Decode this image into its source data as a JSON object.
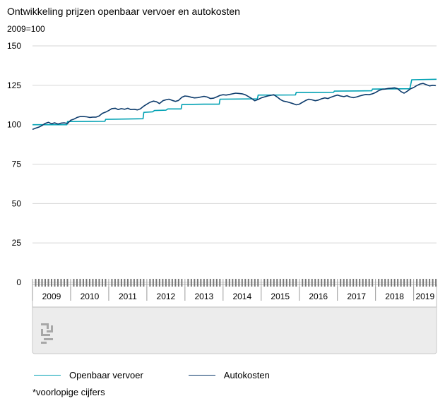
{
  "title": "Ontwikkeling prijzen openbaar vervoer en autokosten",
  "unit_label": "2009=100",
  "footnote": "*voorlopige cijfers",
  "logo": {
    "name": "cbs-logo",
    "color": "#a7a7a7"
  },
  "chart_data": {
    "type": "line",
    "title": "Ontwikkeling prijzen openbaar vervoer en autokosten",
    "ylabel": "2009=100",
    "xlabel": "",
    "ylim": [
      0,
      150
    ],
    "yticks": [
      0,
      25,
      50,
      75,
      100,
      125,
      150
    ],
    "xrange": [
      2009.0,
      2019.6
    ],
    "x_categories": [
      "2009",
      "2010",
      "2011",
      "2012",
      "2013",
      "2014",
      "2015",
      "2016",
      "2017",
      "2018",
      "2019"
    ],
    "grid": true,
    "legend_position": "bottom-left",
    "series": [
      {
        "name": "Openbaar vervoer",
        "color": "#00a1b3",
        "points": [
          [
            2009.0,
            100.0
          ],
          [
            2009.9,
            100.0
          ],
          [
            2009.92,
            102.0
          ],
          [
            2010.9,
            102.2
          ],
          [
            2010.92,
            103.4
          ],
          [
            2011.5,
            103.6
          ],
          [
            2011.9,
            103.8
          ],
          [
            2011.92,
            107.8
          ],
          [
            2012.15,
            108.2
          ],
          [
            2012.2,
            109.0
          ],
          [
            2012.5,
            109.2
          ],
          [
            2012.55,
            110.0
          ],
          [
            2012.9,
            110.0
          ],
          [
            2012.92,
            112.8
          ],
          [
            2013.5,
            113.0
          ],
          [
            2013.9,
            113.0
          ],
          [
            2013.92,
            116.2
          ],
          [
            2014.9,
            116.4
          ],
          [
            2014.92,
            118.8
          ],
          [
            2015.9,
            118.9
          ],
          [
            2015.92,
            120.5
          ],
          [
            2016.9,
            120.6
          ],
          [
            2016.92,
            121.3
          ],
          [
            2017.9,
            121.5
          ],
          [
            2017.92,
            122.6
          ],
          [
            2018.9,
            122.8
          ],
          [
            2018.95,
            128.5
          ],
          [
            2019.6,
            128.8
          ]
        ]
      },
      {
        "name": "Autokosten",
        "color": "#0b3a6b",
        "points": [
          [
            2009.0,
            97.0
          ],
          [
            2009.08,
            97.8
          ],
          [
            2009.17,
            98.5
          ],
          [
            2009.25,
            99.5
          ],
          [
            2009.33,
            100.8
          ],
          [
            2009.42,
            101.5
          ],
          [
            2009.5,
            100.6
          ],
          [
            2009.58,
            101.2
          ],
          [
            2009.67,
            100.4
          ],
          [
            2009.75,
            101.0
          ],
          [
            2009.83,
            101.2
          ],
          [
            2009.92,
            100.8
          ],
          [
            2010.0,
            102.8
          ],
          [
            2010.08,
            103.5
          ],
          [
            2010.17,
            104.6
          ],
          [
            2010.25,
            105.2
          ],
          [
            2010.33,
            105.2
          ],
          [
            2010.42,
            105.0
          ],
          [
            2010.5,
            104.6
          ],
          [
            2010.58,
            104.8
          ],
          [
            2010.67,
            104.8
          ],
          [
            2010.75,
            105.6
          ],
          [
            2010.83,
            107.2
          ],
          [
            2010.92,
            108.0
          ],
          [
            2011.0,
            109.0
          ],
          [
            2011.08,
            110.2
          ],
          [
            2011.17,
            110.4
          ],
          [
            2011.25,
            109.6
          ],
          [
            2011.33,
            110.2
          ],
          [
            2011.42,
            109.8
          ],
          [
            2011.5,
            110.4
          ],
          [
            2011.58,
            109.6
          ],
          [
            2011.67,
            109.8
          ],
          [
            2011.75,
            109.4
          ],
          [
            2011.83,
            110.0
          ],
          [
            2011.92,
            111.8
          ],
          [
            2012.0,
            113.0
          ],
          [
            2012.08,
            114.2
          ],
          [
            2012.17,
            115.0
          ],
          [
            2012.25,
            114.6
          ],
          [
            2012.33,
            113.4
          ],
          [
            2012.42,
            115.2
          ],
          [
            2012.5,
            115.8
          ],
          [
            2012.58,
            116.2
          ],
          [
            2012.67,
            115.4
          ],
          [
            2012.75,
            114.8
          ],
          [
            2012.83,
            115.4
          ],
          [
            2012.92,
            117.4
          ],
          [
            2013.0,
            118.2
          ],
          [
            2013.08,
            118.0
          ],
          [
            2013.17,
            117.4
          ],
          [
            2013.25,
            117.0
          ],
          [
            2013.33,
            117.2
          ],
          [
            2013.42,
            117.6
          ],
          [
            2013.5,
            118.0
          ],
          [
            2013.58,
            117.6
          ],
          [
            2013.67,
            116.6
          ],
          [
            2013.75,
            116.8
          ],
          [
            2013.83,
            117.6
          ],
          [
            2013.92,
            118.6
          ],
          [
            2014.0,
            119.0
          ],
          [
            2014.08,
            118.8
          ],
          [
            2014.17,
            119.2
          ],
          [
            2014.25,
            119.6
          ],
          [
            2014.33,
            120.0
          ],
          [
            2014.42,
            119.8
          ],
          [
            2014.5,
            119.6
          ],
          [
            2014.58,
            119.0
          ],
          [
            2014.67,
            117.8
          ],
          [
            2014.75,
            116.6
          ],
          [
            2014.83,
            115.2
          ],
          [
            2014.92,
            116.0
          ],
          [
            2015.0,
            117.0
          ],
          [
            2015.08,
            117.6
          ],
          [
            2015.17,
            118.2
          ],
          [
            2015.25,
            118.6
          ],
          [
            2015.33,
            119.0
          ],
          [
            2015.42,
            117.6
          ],
          [
            2015.5,
            116.0
          ],
          [
            2015.58,
            115.0
          ],
          [
            2015.67,
            114.6
          ],
          [
            2015.75,
            114.0
          ],
          [
            2015.83,
            113.4
          ],
          [
            2015.92,
            112.6
          ],
          [
            2016.0,
            113.0
          ],
          [
            2016.08,
            114.2
          ],
          [
            2016.17,
            115.4
          ],
          [
            2016.25,
            116.2
          ],
          [
            2016.33,
            115.8
          ],
          [
            2016.42,
            115.2
          ],
          [
            2016.5,
            115.6
          ],
          [
            2016.58,
            116.4
          ],
          [
            2016.67,
            117.0
          ],
          [
            2016.75,
            116.6
          ],
          [
            2016.83,
            117.4
          ],
          [
            2016.92,
            118.2
          ],
          [
            2017.0,
            118.8
          ],
          [
            2017.08,
            118.2
          ],
          [
            2017.17,
            117.8
          ],
          [
            2017.25,
            118.4
          ],
          [
            2017.33,
            117.6
          ],
          [
            2017.42,
            117.2
          ],
          [
            2017.5,
            117.6
          ],
          [
            2017.58,
            118.2
          ],
          [
            2017.67,
            118.8
          ],
          [
            2017.75,
            119.2
          ],
          [
            2017.83,
            119.0
          ],
          [
            2017.92,
            119.6
          ],
          [
            2018.0,
            120.4
          ],
          [
            2018.08,
            121.6
          ],
          [
            2018.17,
            122.4
          ],
          [
            2018.25,
            122.6
          ],
          [
            2018.33,
            123.0
          ],
          [
            2018.42,
            123.2
          ],
          [
            2018.5,
            123.4
          ],
          [
            2018.58,
            122.8
          ],
          [
            2018.67,
            121.0
          ],
          [
            2018.75,
            120.0
          ],
          [
            2018.83,
            121.2
          ],
          [
            2018.92,
            122.8
          ],
          [
            2019.0,
            123.6
          ],
          [
            2019.08,
            124.8
          ],
          [
            2019.17,
            125.8
          ],
          [
            2019.25,
            126.2
          ],
          [
            2019.33,
            125.4
          ],
          [
            2019.42,
            124.6
          ],
          [
            2019.5,
            125.0
          ],
          [
            2019.58,
            124.8
          ]
        ]
      }
    ]
  }
}
